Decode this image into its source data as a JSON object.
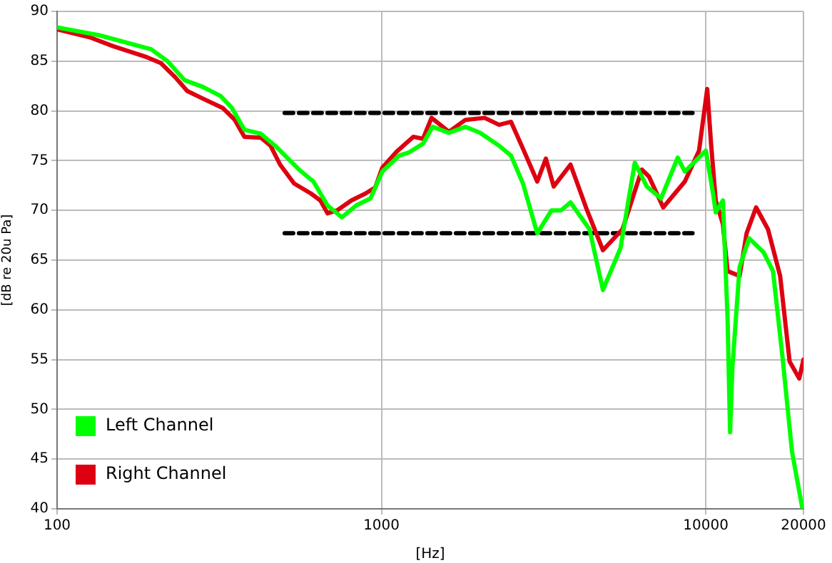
{
  "chart_data": {
    "type": "line",
    "xlabel": "[Hz]",
    "ylabel": "[dB re 20u Pa]",
    "log": "x",
    "xlim": [
      100,
      20000
    ],
    "xticks": [
      100,
      1000,
      10000,
      20000
    ],
    "ylim": [
      40,
      90
    ],
    "yticks": [
      40,
      45,
      50,
      55,
      60,
      65,
      70,
      75,
      80,
      85,
      90
    ],
    "grid": true,
    "legend": "bottom left",
    "marker": "none",
    "line_style": "solid",
    "series": [
      {
        "name": "Left Channel",
        "color": "#00ff00",
        "x": [
          100,
          135,
          195,
          219,
          247,
          282,
          319,
          346,
          378,
          425,
          470,
          557,
          617,
          682,
          755,
          836,
          925,
          1006,
          1133,
          1212,
          1343,
          1437,
          1614,
          1816,
          2013,
          2305,
          2509,
          2731,
          3022,
          3344,
          3575,
          3827,
          4379,
          4818,
          5456,
          6040,
          6576,
          7278,
          8190,
          8615,
          10000,
          10550,
          10730,
          11290,
          11670,
          11880,
          12080,
          12710,
          13600,
          15060,
          16110,
          17230,
          18430,
          19800
        ],
        "values": [
          88.4,
          87.6,
          86.2,
          85.0,
          83.1,
          82.4,
          81.5,
          80.3,
          78.1,
          77.7,
          76.5,
          74.1,
          72.9,
          70.5,
          69.3,
          70.5,
          71.2,
          73.9,
          75.5,
          75.8,
          76.7,
          78.4,
          77.8,
          78.4,
          77.8,
          76.5,
          75.5,
          72.7,
          67.7,
          70.0,
          70.0,
          70.8,
          68.1,
          62.0,
          66.2,
          74.8,
          72.4,
          71.2,
          75.3,
          73.9,
          76.0,
          71.5,
          69.8,
          71.0,
          59.1,
          47.7,
          54.3,
          64.3,
          67.2,
          65.8,
          63.9,
          55.3,
          45.8,
          40.2
        ]
      },
      {
        "name": "Right Channel",
        "color": "#dd0011",
        "x": [
          100,
          126,
          149,
          189,
          209,
          231,
          252,
          283,
          324,
          353,
          378,
          425,
          455,
          487,
          538,
          606,
          648,
          682,
          730,
          808,
          893,
          957,
          1006,
          1114,
          1254,
          1343,
          1427,
          1614,
          1816,
          2080,
          2305,
          2509,
          2731,
          3022,
          3213,
          3397,
          3827,
          4305,
          4818,
          5534,
          6350,
          6680,
          7390,
          8615,
          9530,
          10100,
          10380,
          10730,
          11290,
          11670,
          12710,
          13360,
          14290,
          15550,
          16950,
          18130,
          19410,
          20000
        ],
        "values": [
          88.2,
          87.4,
          86.5,
          85.4,
          84.8,
          83.4,
          82.0,
          81.2,
          80.3,
          79.1,
          77.4,
          77.3,
          76.5,
          74.6,
          72.7,
          71.7,
          71.0,
          69.7,
          70.0,
          71.0,
          71.7,
          72.3,
          74.3,
          75.9,
          77.4,
          77.2,
          79.3,
          77.9,
          79.1,
          79.3,
          78.6,
          78.9,
          76.2,
          72.9,
          75.2,
          72.4,
          74.6,
          70.0,
          66.0,
          68.1,
          74.1,
          73.4,
          70.3,
          72.9,
          76.0,
          82.2,
          76.7,
          71.0,
          68.6,
          63.9,
          63.4,
          67.7,
          70.3,
          68.1,
          63.4,
          54.8,
          53.1,
          55.0
        ]
      },
      {
        "type": "line",
        "color": "#000000",
        "line_style": "dashed",
        "x": [
          503,
          9100
        ],
        "values": [
          79.8,
          79.8
        ]
      },
      {
        "type": "line",
        "color": "#000000",
        "line_style": "dashed",
        "x": [
          503,
          9100
        ],
        "values": [
          67.7,
          67.7
        ]
      }
    ]
  }
}
